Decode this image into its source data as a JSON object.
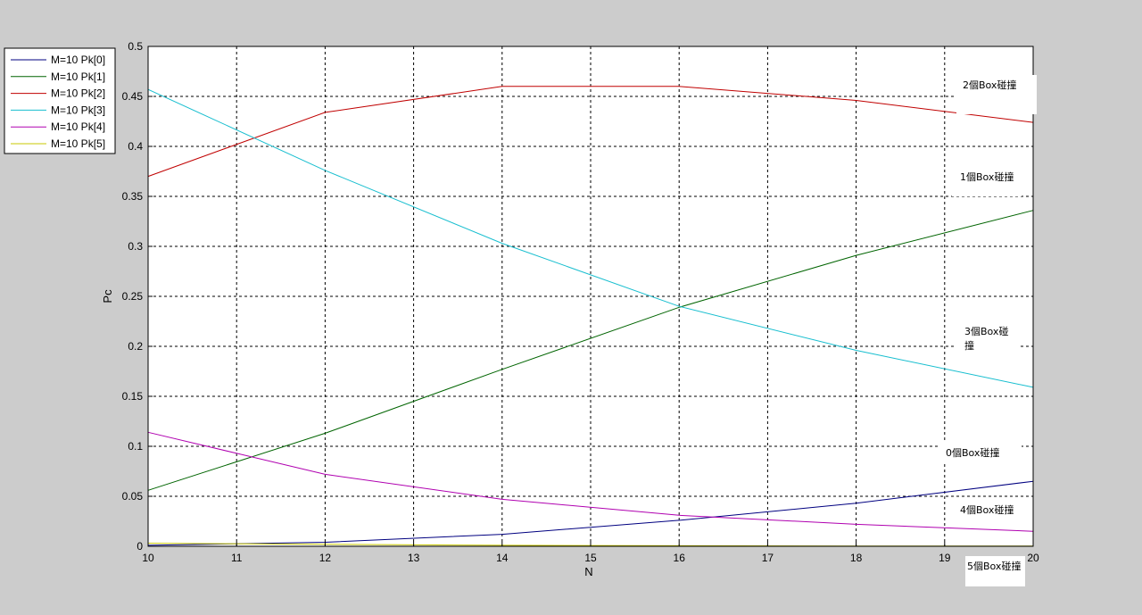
{
  "chart_data": {
    "type": "line",
    "title": "",
    "xlabel": "N",
    "ylabel": "Pc",
    "xlim": [
      10,
      20
    ],
    "ylim": [
      0,
      0.5
    ],
    "grid": true,
    "legend_position": "top-left-outside",
    "x_ticks": [
      "10",
      "11",
      "12",
      "13",
      "14",
      "15",
      "16",
      "17",
      "18",
      "19",
      "20"
    ],
    "y_ticks": [
      "0",
      "0.05",
      "0.1",
      "0.15",
      "0.2",
      "0.25",
      "0.3",
      "0.35",
      "0.4",
      "0.45",
      "0.5"
    ],
    "x": [
      10,
      12,
      14,
      16,
      18,
      20
    ],
    "series": [
      {
        "name": "M=10 Pk[0]",
        "color": "#000080",
        "values": [
          0.001,
          0.004,
          0.012,
          0.026,
          0.043,
          0.065
        ]
      },
      {
        "name": "M=10 Pk[1]",
        "color": "#006400",
        "values": [
          0.056,
          0.113,
          0.177,
          0.239,
          0.291,
          0.336
        ]
      },
      {
        "name": "M=10 Pk[2]",
        "color": "#c00000",
        "values": [
          0.37,
          0.434,
          0.46,
          0.46,
          0.446,
          0.424
        ]
      },
      {
        "name": "M=10 Pk[3]",
        "color": "#17becf",
        "values": [
          0.457,
          0.376,
          0.303,
          0.24,
          0.196,
          0.159
        ]
      },
      {
        "name": "M=10 Pk[4]",
        "color": "#b000b0",
        "values": [
          0.114,
          0.072,
          0.047,
          0.031,
          0.022,
          0.015
        ]
      },
      {
        "name": "M=10 Pk[5]",
        "color": "#c8c800",
        "values": [
          0.003,
          0.002,
          0.001,
          0.0005,
          0.0003,
          0.0002
        ]
      }
    ],
    "annotations": [
      {
        "text": "2個Box碰撞"
      },
      {
        "text": "1個Box碰撞"
      },
      {
        "text": "3個Box碰撞"
      },
      {
        "text": "0個Box碰撞"
      },
      {
        "text": "4個Box碰撞"
      },
      {
        "text": "5個Box碰撞"
      }
    ]
  }
}
